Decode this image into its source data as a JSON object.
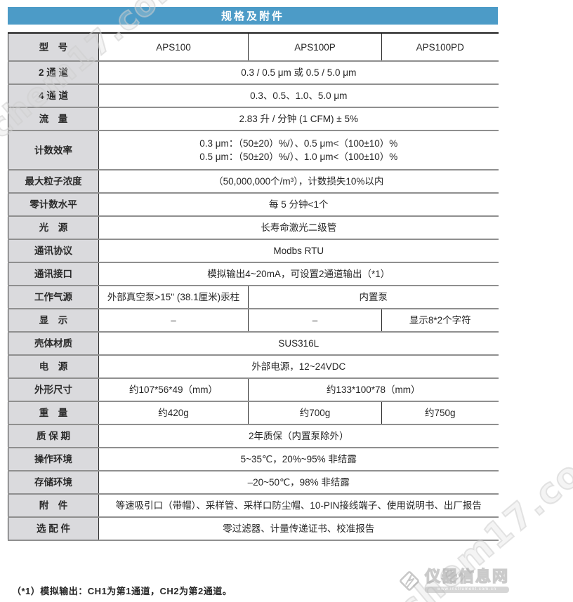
{
  "banner": {
    "title": "规格及附件"
  },
  "colors": {
    "banner_bg": "#4c9bc7",
    "label_bg": "#dadadd"
  },
  "table": {
    "rows": [
      {
        "label": "型　号",
        "cells": [
          {
            "text": "APS100",
            "span": 1
          },
          {
            "text": "APS100P",
            "span": 1
          },
          {
            "text": "APS100PD",
            "span": 1
          }
        ]
      },
      {
        "label": "2 通 道",
        "cells": [
          {
            "text": "0.3 / 0.5 μm 或 0.5 / 5.0 μm",
            "span": 3
          }
        ]
      },
      {
        "label": "4 通 道",
        "cells": [
          {
            "text": "0.3、0.5、1.0、5.0 μm",
            "span": 3
          }
        ]
      },
      {
        "label": "流　量",
        "cells": [
          {
            "text": "2.83 升 / 分钟 (1 CFM) ± 5%",
            "span": 3
          }
        ]
      },
      {
        "label": "计数效率",
        "cells": [
          {
            "text": "0.3 μm：（50±20）%/）、0.5 μm<（100±10）%\n0.5 μm：（50±20）%/）、1.0 μm<（100±10）%",
            "span": 3
          }
        ]
      },
      {
        "label": "最大粒子浓度",
        "cells": [
          {
            "text": "（50,000,000个/m³），计数损失10%以内",
            "span": 3
          }
        ]
      },
      {
        "label": "零计数水平",
        "cells": [
          {
            "text": "每 5 分钟<1个",
            "span": 3
          }
        ]
      },
      {
        "label": "光　源",
        "cells": [
          {
            "text": "长寿命激光二级管",
            "span": 3
          }
        ]
      },
      {
        "label": "通讯协议",
        "cells": [
          {
            "text": "Modbs RTU",
            "span": 3
          }
        ]
      },
      {
        "label": "通讯接口",
        "cells": [
          {
            "text": "模拟输出4~20mA，可设置2通道输出（*1）",
            "span": 3
          }
        ]
      },
      {
        "label": "工作气源",
        "cells": [
          {
            "text": "外部真空泵>15\" (38.1厘米)汞柱",
            "span": 1
          },
          {
            "text": "内置泵",
            "span": 2
          }
        ]
      },
      {
        "label": "显　示",
        "cells": [
          {
            "text": "–",
            "span": 1
          },
          {
            "text": "–",
            "span": 1
          },
          {
            "text": "显示8*2个字符",
            "span": 1
          }
        ]
      },
      {
        "label": "壳体材质",
        "cells": [
          {
            "text": "SUS316L",
            "span": 3
          }
        ]
      },
      {
        "label": "电　源",
        "cells": [
          {
            "text": "外部电源，12~24VDC",
            "span": 3
          }
        ]
      },
      {
        "label": "外形尺寸",
        "cells": [
          {
            "text": "约107*56*49（mm）",
            "span": 1
          },
          {
            "text": "约133*100*78（mm）",
            "span": 2
          }
        ]
      },
      {
        "label": "重　量",
        "cells": [
          {
            "text": "约420g",
            "span": 1
          },
          {
            "text": "约700g",
            "span": 1
          },
          {
            "text": "约750g",
            "span": 1
          }
        ]
      },
      {
        "label": "质 保 期",
        "cells": [
          {
            "text": "2年质保（内置泵除外）",
            "span": 3
          }
        ]
      },
      {
        "label": "操作环境",
        "cells": [
          {
            "text": "5~35℃，20%~95% 非结露",
            "span": 3
          }
        ]
      },
      {
        "label": "存储环境",
        "cells": [
          {
            "text": "–20~50℃，98% 非结露",
            "span": 3
          }
        ]
      },
      {
        "label": "附　件",
        "cells": [
          {
            "text": "等速吸引口（带帽）、采样管、采样口防尘帽、10-PIN接线端子、使用说明书、出厂报告",
            "span": 3
          }
        ]
      },
      {
        "label": "选 配 件",
        "cells": [
          {
            "text": "零过滤器、计量传递证书、校准报告",
            "span": 3
          }
        ]
      }
    ]
  },
  "footnote": "（*1）模拟输出：CH1为第1通道，CH2为第2通道。",
  "watermarks": {
    "chem17_text": "chem17.com",
    "logo_text": "仪器信息网",
    "logo_subtext": "www.instrument.com.cn"
  }
}
